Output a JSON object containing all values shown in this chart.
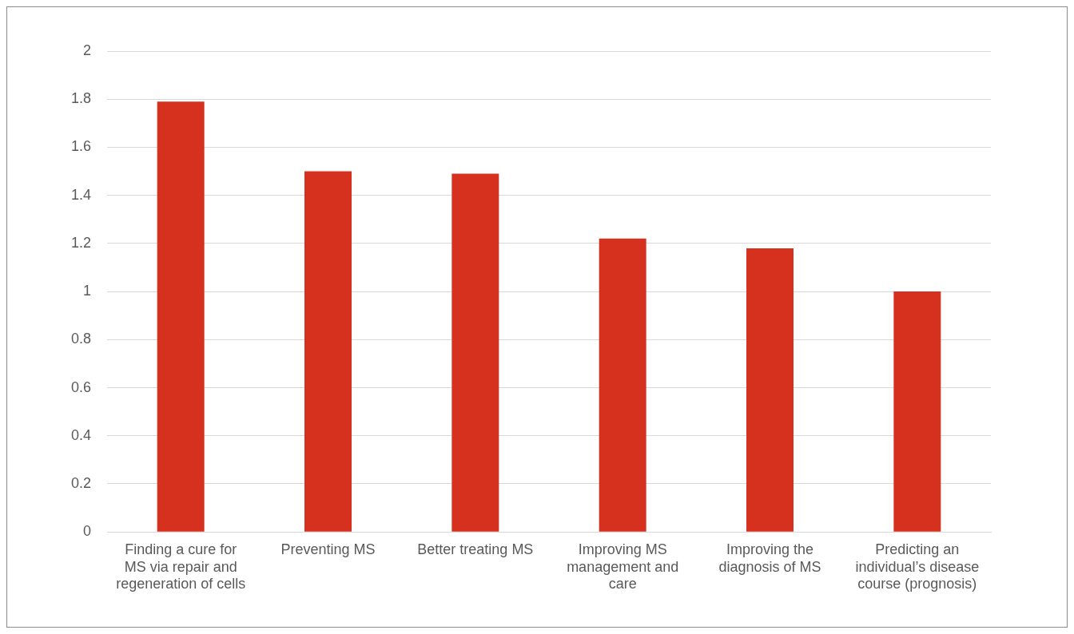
{
  "chart_data": {
    "type": "bar",
    "categories": [
      "Finding a cure for MS via repair and regeneration of cells",
      "Preventing MS",
      "Better treating MS",
      "Improving MS management and care",
      "Improving the diagnosis of MS",
      "Predicting an individual’s disease course (prognosis)"
    ],
    "values": [
      1.79,
      1.5,
      1.49,
      1.22,
      1.18,
      1.0
    ],
    "color": "#d6311f",
    "ylim": [
      0,
      2
    ],
    "yticks": [
      0,
      {
        "value": 0.2,
        "label": "0.2"
      },
      {
        "value": 0.4,
        "label": "0.4"
      },
      {
        "value": 0.6,
        "label": "0.6"
      },
      {
        "value": 0.8,
        "label": "0.8"
      },
      1,
      {
        "value": 1.2,
        "label": "1.2"
      },
      {
        "value": 1.4,
        "label": "1.4"
      },
      {
        "value": 1.6,
        "label": "1.6"
      },
      {
        "value": 1.8,
        "label": "1.8"
      },
      2
    ],
    "grid": "y",
    "legend": false
  }
}
